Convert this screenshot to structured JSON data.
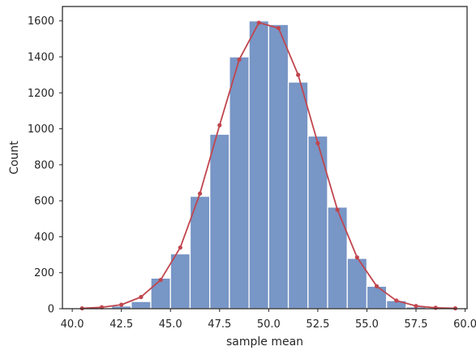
{
  "chart_data": {
    "type": "bar",
    "title": "",
    "xlabel": "sample mean",
    "ylabel": "Count",
    "xlim": [
      39.5,
      60.1
    ],
    "ylim": [
      0,
      1680
    ],
    "grid": false,
    "bar_color": "#7896c6",
    "bar_edge_color": "#ffffff",
    "line_color": "#c0464e",
    "frame_color": "#262626",
    "x_ticks": [
      "40.0",
      "42.5",
      "45.0",
      "47.5",
      "50.0",
      "52.5",
      "55.0",
      "57.5",
      "60.0"
    ],
    "y_ticks": [
      "0",
      "200",
      "400",
      "600",
      "800",
      "1000",
      "1200",
      "1400",
      "1600"
    ],
    "histogram": {
      "bin_edges": [
        40,
        41,
        42,
        43,
        44,
        45,
        46,
        47,
        48,
        49,
        50,
        51,
        52,
        53,
        54,
        55,
        56,
        57,
        58,
        59,
        60
      ],
      "counts": [
        0,
        4,
        15,
        40,
        170,
        305,
        625,
        970,
        1400,
        1600,
        1580,
        1260,
        960,
        565,
        280,
        125,
        45,
        10,
        2,
        0
      ]
    },
    "curve": {
      "x": [
        40.5,
        41.5,
        42.5,
        43.5,
        44.5,
        45.5,
        46.5,
        47.5,
        48.5,
        49.5,
        50.5,
        51.5,
        52.5,
        53.5,
        54.5,
        55.5,
        56.5,
        57.5,
        58.5,
        59.5
      ],
      "y": [
        2,
        8,
        22,
        65,
        160,
        340,
        640,
        1020,
        1385,
        1590,
        1560,
        1300,
        920,
        550,
        285,
        125,
        45,
        15,
        5,
        2
      ]
    }
  }
}
